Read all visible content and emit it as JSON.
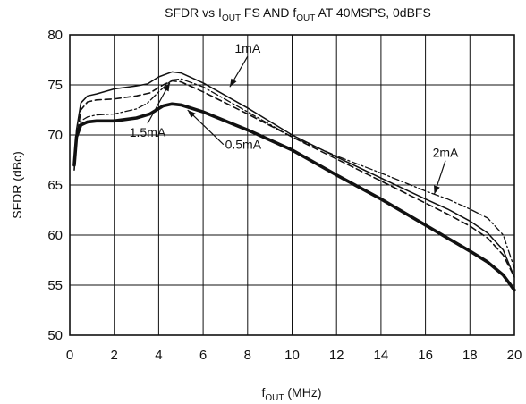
{
  "chart_data": {
    "type": "line",
    "title": "SFDR vs I",
    "title_sub1": "OUT",
    "title_mid": " FS AND f",
    "title_sub2": "OUT",
    "title_end": " AT 40MSPS, 0dBFS",
    "xlabel": "f",
    "xlabel_sub": "OUT",
    "xlabel_unit": " (MHz)",
    "ylabel": "SFDR (dBc)",
    "xlim": [
      0,
      20
    ],
    "ylim": [
      50,
      80
    ],
    "x_ticks": [
      0,
      2,
      4,
      6,
      8,
      10,
      12,
      14,
      16,
      18,
      20
    ],
    "y_ticks": [
      50,
      55,
      60,
      65,
      70,
      75,
      80
    ],
    "grid": true,
    "legend": "none",
    "series": [
      {
        "name": "0.5mA",
        "style": "thick",
        "x": [
          0.2,
          0.3,
          0.5,
          0.8,
          1.2,
          2,
          3,
          3.6,
          4.2,
          4.6,
          5,
          6,
          8,
          10,
          12,
          14,
          16,
          17,
          18,
          18.8,
          19.5,
          20
        ],
        "y": [
          67,
          69.8,
          71,
          71.3,
          71.4,
          71.4,
          71.7,
          72.1,
          72.9,
          73.1,
          73,
          72.3,
          70.5,
          68.5,
          66,
          63.6,
          61,
          59.7,
          58.4,
          57.3,
          56,
          54.5
        ]
      },
      {
        "name": "1mA",
        "style": "solid",
        "x": [
          0.2,
          0.3,
          0.5,
          0.8,
          1.2,
          2,
          3,
          3.5,
          4,
          4.6,
          5,
          6,
          8,
          10,
          12,
          14,
          16,
          17,
          18,
          18.8,
          19.5,
          20
        ],
        "y": [
          67.5,
          70.5,
          73.2,
          73.9,
          74.1,
          74.6,
          74.9,
          75.1,
          75.8,
          76.3,
          76.2,
          75.2,
          72.7,
          70,
          67.8,
          65.7,
          63.6,
          62.6,
          61.4,
          60.2,
          58.5,
          55.8
        ]
      },
      {
        "name": "1.5mA",
        "style": "dashed",
        "x": [
          0.2,
          0.3,
          0.5,
          0.8,
          1.2,
          2,
          3,
          3.6,
          4.2,
          4.6,
          5,
          6,
          8,
          10,
          12,
          14,
          16,
          17,
          18,
          18.8,
          19.5,
          20
        ],
        "y": [
          66.5,
          69.5,
          72.5,
          73.3,
          73.5,
          73.6,
          73.9,
          74.2,
          75,
          75.4,
          75.3,
          74.3,
          72.1,
          69.8,
          67.6,
          65.4,
          63.2,
          62.1,
          60.9,
          59.7,
          58,
          55.8
        ]
      },
      {
        "name": "2mA",
        "style": "dashdot",
        "x": [
          0.2,
          0.3,
          0.5,
          0.8,
          1.2,
          2,
          3,
          3.5,
          4,
          4.6,
          5,
          6,
          8,
          10,
          12,
          14,
          16,
          17,
          18,
          18.8,
          19.5,
          20
        ],
        "y": [
          67.5,
          70.3,
          71.4,
          71.8,
          72,
          72.1,
          72.6,
          73.2,
          74.3,
          75.5,
          75.6,
          74.8,
          72.3,
          69.8,
          67.9,
          66.2,
          64.4,
          63.6,
          62.6,
          61.7,
          60,
          56.7
        ]
      }
    ],
    "annotations": [
      {
        "text": "1mA",
        "label_at": [
          8,
          78.2
        ],
        "arrow_to": [
          7.2,
          74.8
        ]
      },
      {
        "text": "1.5mA",
        "label_at": [
          3.5,
          69.8
        ],
        "arrow_to": [
          4.5,
          75.2
        ]
      },
      {
        "text": "0.5mA",
        "label_at": [
          7.8,
          68.6
        ],
        "arrow_to": [
          5.3,
          72.5
        ]
      },
      {
        "text": "2mA",
        "label_at": [
          16.9,
          67.8
        ],
        "arrow_to": [
          16.4,
          64.1
        ]
      }
    ]
  }
}
